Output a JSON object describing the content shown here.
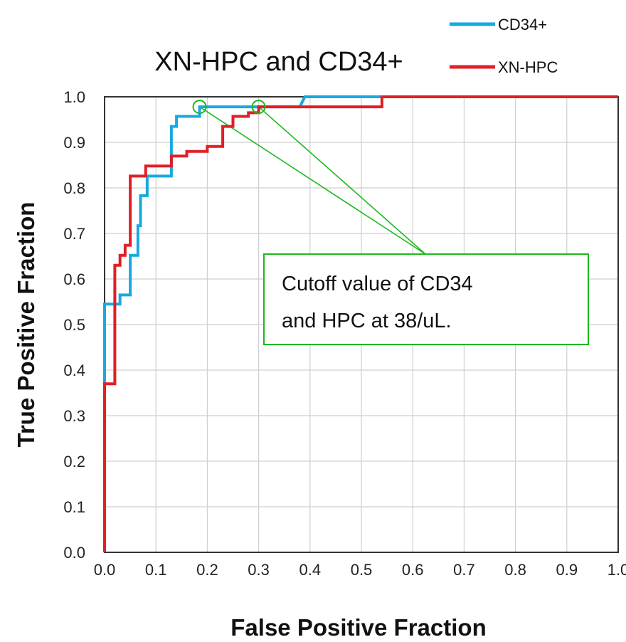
{
  "chart_data": {
    "type": "line",
    "title": "XN-HPC and CD34+",
    "xlabel": "False Positive Fraction",
    "ylabel": "True Positive Fraction",
    "xlim": [
      0,
      1
    ],
    "ylim": [
      0,
      1
    ],
    "x_ticks": [
      "0.0",
      "0.1",
      "0.2",
      "0.3",
      "0.4",
      "0.5",
      "0.6",
      "0.7",
      "0.8",
      "0.9",
      "1.0"
    ],
    "y_ticks": [
      "0.0",
      "0.1",
      "0.2",
      "0.3",
      "0.4",
      "0.5",
      "0.6",
      "0.7",
      "0.8",
      "0.9",
      "1.0"
    ],
    "grid": true,
    "legend_position": "top-right",
    "series": [
      {
        "name": "CD34+",
        "color": "#17a9e1",
        "x": [
          0.0,
          0.0,
          0.0,
          0.0,
          0.02,
          0.02,
          0.03,
          0.03,
          0.05,
          0.05,
          0.065,
          0.065,
          0.07,
          0.07,
          0.083,
          0.083,
          0.13,
          0.13,
          0.14,
          0.14,
          0.155,
          0.155,
          0.185,
          0.185,
          0.38,
          0.39,
          0.54,
          1.0
        ],
        "y": [
          0.0,
          0.37,
          0.37,
          0.545,
          0.545,
          0.545,
          0.545,
          0.565,
          0.565,
          0.652,
          0.652,
          0.717,
          0.717,
          0.783,
          0.783,
          0.826,
          0.826,
          0.935,
          0.935,
          0.957,
          0.957,
          0.957,
          0.957,
          0.978,
          0.978,
          1.0,
          1.0,
          1.0
        ]
      },
      {
        "name": "XN-HPC",
        "color": "#e01f26",
        "x": [
          0.0,
          0.0,
          0.0,
          0.02,
          0.02,
          0.03,
          0.03,
          0.04,
          0.04,
          0.05,
          0.05,
          0.08,
          0.08,
          0.13,
          0.13,
          0.16,
          0.16,
          0.2,
          0.2,
          0.23,
          0.23,
          0.25,
          0.25,
          0.28,
          0.28,
          0.3,
          0.3,
          0.54,
          0.54,
          1.0
        ],
        "y": [
          0.0,
          0.37,
          0.37,
          0.37,
          0.63,
          0.63,
          0.652,
          0.652,
          0.674,
          0.674,
          0.826,
          0.826,
          0.848,
          0.848,
          0.87,
          0.87,
          0.88,
          0.88,
          0.891,
          0.891,
          0.935,
          0.935,
          0.957,
          0.957,
          0.965,
          0.965,
          0.978,
          0.978,
          1.0,
          1.0
        ]
      }
    ],
    "cutoff_points": [
      {
        "x": 0.185,
        "y": 0.978
      },
      {
        "x": 0.3,
        "y": 0.978
      }
    ],
    "annotation": {
      "line1": "Cutoff value of CD34",
      "line2": "and HPC at 38/uL.",
      "color": "#1db91d"
    }
  }
}
